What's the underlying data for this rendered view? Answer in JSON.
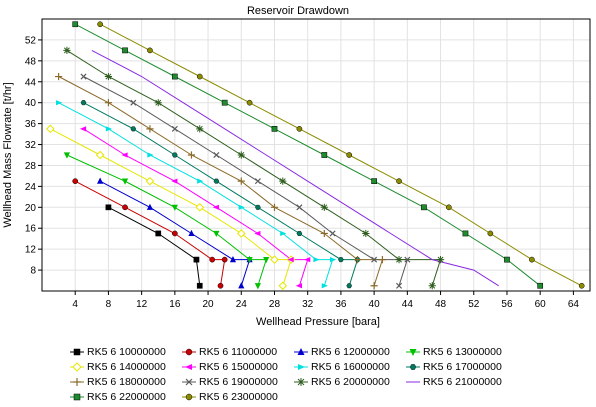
{
  "chart_data": {
    "type": "line",
    "title": "Reservoir Drawdown",
    "xlabel": "Wellhead Pressure [bara]",
    "ylabel": "Wellhead Mass Flowrate [t/hr]",
    "xlim": [
      0,
      66
    ],
    "ylim": [
      4,
      56
    ],
    "xticks": [
      4,
      8,
      12,
      16,
      20,
      24,
      28,
      32,
      36,
      40,
      44,
      48,
      52,
      56,
      60,
      64
    ],
    "yticks": [
      8,
      12,
      16,
      20,
      24,
      28,
      32,
      36,
      40,
      44,
      48,
      52
    ],
    "grid": true,
    "legend_position": "bottom",
    "series": [
      {
        "name": "RK5 6 10000000",
        "color": "#000000",
        "marker": "square",
        "x": [
          8,
          14,
          18.6,
          19
        ],
        "y": [
          20,
          15,
          10,
          5
        ]
      },
      {
        "name": "RK5 6 11000000",
        "color": "#cc0000",
        "marker": "circle",
        "x": [
          4,
          10,
          16,
          20.5,
          22,
          21.5
        ],
        "y": [
          25,
          20,
          15,
          10,
          10,
          5
        ]
      },
      {
        "name": "RK5 6 12000000",
        "color": "#0000cc",
        "marker": "triangle",
        "x": [
          7,
          13,
          18,
          23,
          25,
          24
        ],
        "y": [
          25,
          20,
          15,
          10,
          10,
          5
        ]
      },
      {
        "name": "RK5 6 13000000",
        "color": "#00c000",
        "marker": "triangle-down",
        "x": [
          3,
          10,
          16,
          21,
          25,
          27,
          26
        ],
        "y": [
          30,
          25,
          20,
          15,
          10,
          10,
          5
        ]
      },
      {
        "name": "RK5 6 14000000",
        "color": "#e6e600",
        "marker": "diamond",
        "x": [
          1,
          7,
          13,
          19,
          24,
          28,
          30,
          29
        ],
        "y": [
          35,
          30,
          25,
          20,
          15,
          10,
          10,
          5
        ]
      },
      {
        "name": "RK5 6 15000000",
        "color": "#ff00ff",
        "marker": "triangle-left",
        "x": [
          5,
          10,
          16,
          21,
          26,
          30,
          32,
          31
        ],
        "y": [
          35,
          30,
          25,
          20,
          15,
          10,
          10,
          5
        ]
      },
      {
        "name": "RK5 6 16000000",
        "color": "#00e0e0",
        "marker": "triangle-right",
        "x": [
          2,
          8,
          13,
          19,
          24,
          29,
          33,
          35,
          34
        ],
        "y": [
          40,
          35,
          30,
          25,
          20,
          15,
          10,
          10,
          5
        ]
      },
      {
        "name": "RK5 6 17000000",
        "color": "#007a5e",
        "marker": "hexagon",
        "x": [
          5,
          11,
          16,
          21,
          26,
          31,
          36,
          38,
          37
        ],
        "y": [
          40,
          35,
          30,
          25,
          20,
          15,
          10,
          10,
          5
        ]
      },
      {
        "name": "RK5 6 18000000",
        "color": "#8b6a2a",
        "marker": "plus",
        "x": [
          2,
          8,
          13,
          18,
          24,
          28,
          34,
          38,
          41,
          40
        ],
        "y": [
          45,
          40,
          35,
          30,
          25,
          20,
          15,
          10,
          10,
          5
        ]
      },
      {
        "name": "RK5 6 19000000",
        "color": "#5a5a5a",
        "marker": "cross",
        "x": [
          5,
          11,
          16,
          21,
          26,
          31,
          35,
          40,
          44,
          43
        ],
        "y": [
          45,
          40,
          35,
          30,
          25,
          20,
          15,
          10,
          10,
          5
        ]
      },
      {
        "name": "RK5 6 20000000",
        "color": "#2e5e1e",
        "marker": "star",
        "x": [
          3,
          8,
          14,
          19,
          24,
          29,
          34,
          39,
          43,
          48,
          47
        ],
        "y": [
          50,
          45,
          40,
          35,
          30,
          25,
          20,
          15,
          10,
          10,
          5
        ]
      },
      {
        "name": "RK5 6 21000000",
        "color": "#8a2be2",
        "marker": "none",
        "x": [
          6,
          12,
          17,
          22,
          27,
          32,
          37,
          42,
          47,
          52,
          55
        ],
        "y": [
          50,
          45,
          40,
          35,
          30,
          25,
          20,
          15,
          10,
          8,
          5
        ]
      },
      {
        "name": "RK5 6 22000000",
        "color": "#1e8c2e",
        "marker": "square",
        "x": [
          4,
          10,
          16,
          22,
          28,
          34,
          40,
          46,
          51,
          56,
          60
        ],
        "y": [
          55,
          50,
          45,
          40,
          35,
          30,
          25,
          20,
          15,
          10,
          5
        ]
      },
      {
        "name": "RK5 6 23000000",
        "color": "#8b8b00",
        "marker": "circle",
        "x": [
          7,
          13,
          19,
          25,
          31,
          37,
          43,
          49,
          54,
          59,
          65
        ],
        "y": [
          55,
          50,
          45,
          40,
          35,
          30,
          25,
          20,
          15,
          10,
          5
        ]
      }
    ]
  }
}
